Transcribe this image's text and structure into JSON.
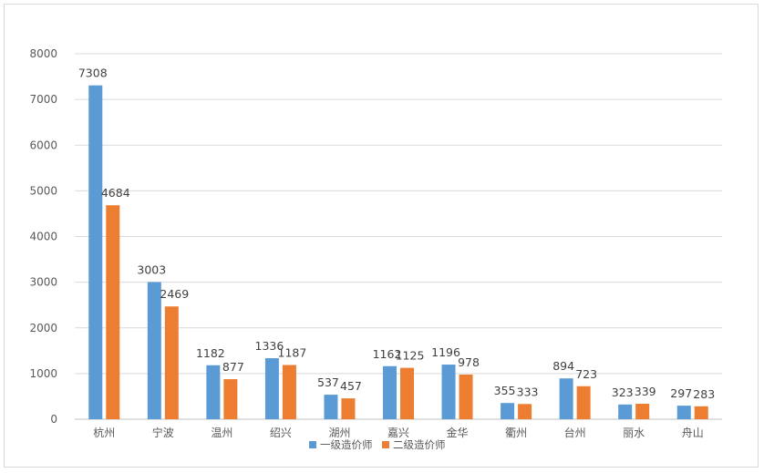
{
  "chart_data": {
    "type": "bar",
    "categories": [
      "杭州",
      "宁波",
      "温州",
      "绍兴",
      "湖州",
      "嘉兴",
      "金华",
      "衢州",
      "台州",
      "丽水",
      "舟山"
    ],
    "series": [
      {
        "name": "一级造价师",
        "color": "#5b9bd5",
        "values": [
          7308,
          3003,
          1182,
          1336,
          537,
          1162,
          1196,
          355,
          894,
          323,
          297
        ]
      },
      {
        "name": "二级造价师",
        "color": "#ed7d31",
        "values": [
          4684,
          2469,
          877,
          1187,
          457,
          1125,
          978,
          333,
          723,
          339,
          283
        ]
      }
    ],
    "ylim": [
      0,
      8000
    ],
    "yticks": [
      0,
      1000,
      2000,
      3000,
      4000,
      5000,
      6000,
      7000,
      8000
    ],
    "grid": true,
    "legend": "bottom",
    "gridColor": "#d9d9d9",
    "axisColor": "#bfbfbf"
  }
}
